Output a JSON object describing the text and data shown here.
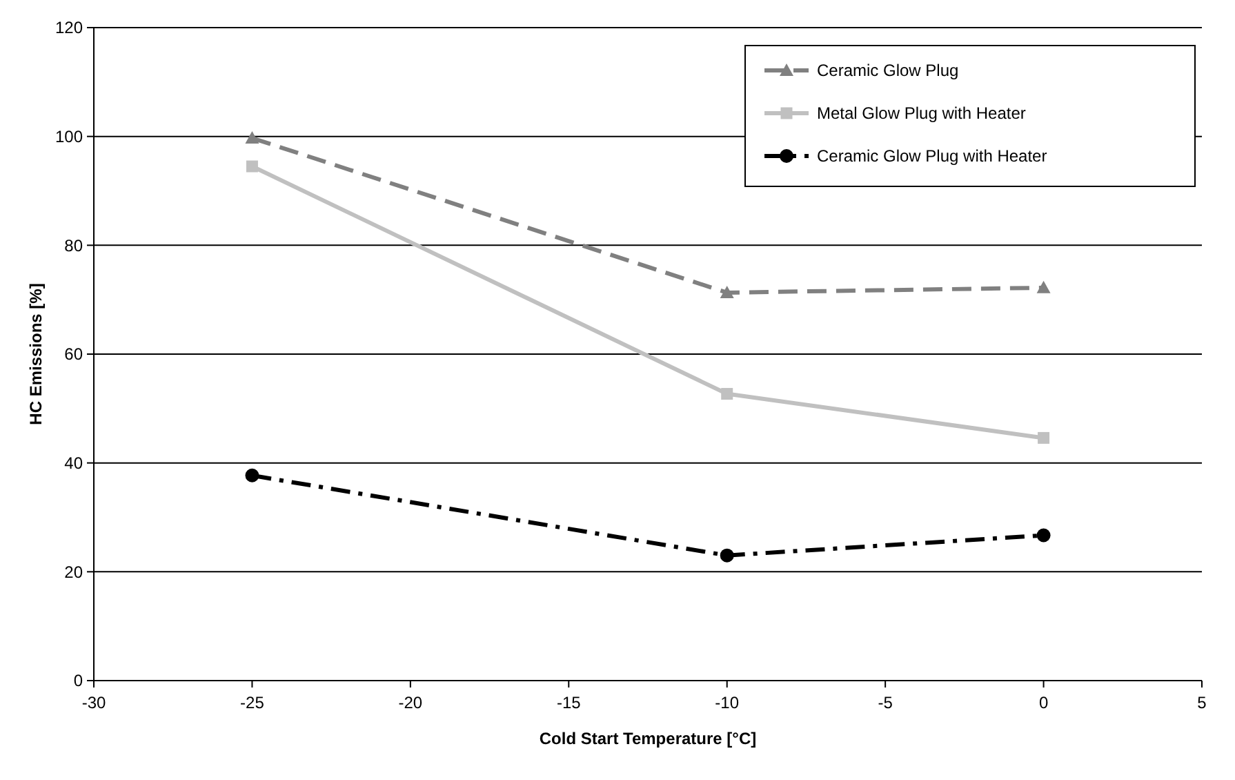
{
  "chart_data": {
    "type": "line",
    "xlabel": "Cold Start Temperature [°C]",
    "ylabel": "HC Emissions [%]",
    "x": [
      -25,
      -10,
      0
    ],
    "series": [
      {
        "name": "Ceramic Glow Plug",
        "color": "#808080",
        "values": [
          99.7,
          71.3,
          72.2
        ],
        "marker": "triangle",
        "line_style": "dashed"
      },
      {
        "name": "Metal Glow Plug with Heater",
        "color": "#c0c0c0",
        "values": [
          94.5,
          52.7,
          44.6
        ],
        "marker": "square",
        "line_style": "solid"
      },
      {
        "name": "Ceramic Glow Plug with Heater",
        "color": "#000000",
        "values": [
          37.7,
          23.0,
          26.7
        ],
        "marker": "circle",
        "line_style": "dashdot"
      }
    ],
    "xlim": [
      -30,
      5
    ],
    "xticks": [
      -30,
      -25,
      -20,
      -15,
      -10,
      -5,
      0,
      5
    ],
    "ylim": [
      0,
      120
    ],
    "yticks": [
      0,
      20,
      40,
      60,
      80,
      100,
      120
    ],
    "grid": "y",
    "legend": "top right"
  }
}
